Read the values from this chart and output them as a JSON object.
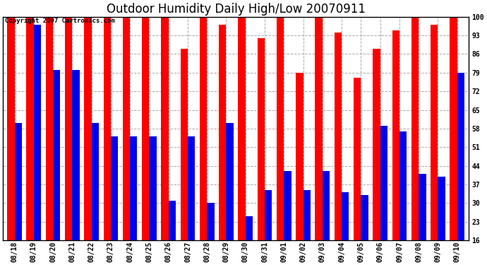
{
  "title": "Outdoor Humidity Daily High/Low 20070911",
  "copyright_text": "Copyright 2007 Cartronics.com",
  "dates": [
    "08/18",
    "08/19",
    "08/20",
    "08/21",
    "08/22",
    "08/23",
    "08/24",
    "08/25",
    "08/26",
    "08/27",
    "08/28",
    "08/29",
    "08/30",
    "08/31",
    "09/01",
    "09/02",
    "09/03",
    "09/04",
    "09/05",
    "09/06",
    "09/07",
    "09/08",
    "09/09",
    "09/10"
  ],
  "highs": [
    100,
    100,
    100,
    100,
    100,
    100,
    100,
    100,
    100,
    88,
    100,
    97,
    100,
    92,
    100,
    79,
    100,
    94,
    77,
    88,
    95,
    100,
    97,
    100
  ],
  "lows": [
    60,
    97,
    80,
    80,
    60,
    55,
    55,
    55,
    31,
    55,
    30,
    60,
    25,
    35,
    42,
    35,
    42,
    34,
    33,
    59,
    57,
    41,
    40,
    79
  ],
  "high_color": "#ff0000",
  "low_color": "#0000ee",
  "background_color": "#ffffff",
  "yticks": [
    16,
    23,
    30,
    37,
    44,
    51,
    58,
    65,
    72,
    79,
    86,
    93,
    100
  ],
  "ymin": 16,
  "ymax": 100,
  "title_fontsize": 12,
  "tick_fontsize": 7,
  "grid_color": "#aaaaaa",
  "border_color": "#000000",
  "copyright_fontsize": 6.5
}
